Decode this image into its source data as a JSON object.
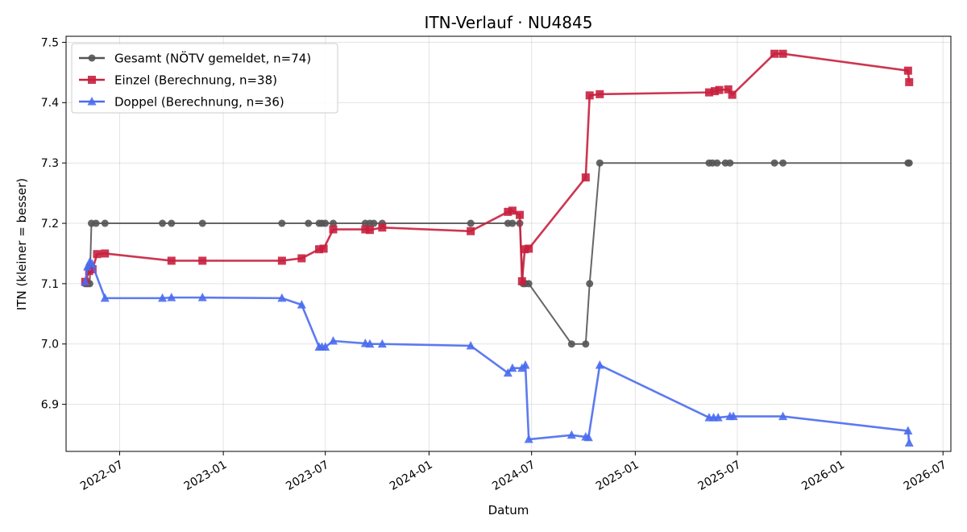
{
  "chart_data": {
    "type": "line",
    "title": "ITN-Verlauf · NU4845",
    "xlabel": "Datum",
    "ylabel": "ITN  (kleiner = besser)",
    "xlim": [
      "2022-03-28",
      "2026-07-15"
    ],
    "ylim": [
      6.822,
      7.51
    ],
    "grid": true,
    "legend": "top-left",
    "x_ticks": [
      "2022-07",
      "2023-01",
      "2023-07",
      "2024-01",
      "2024-07",
      "2025-01",
      "2025-07",
      "2026-01",
      "2026-07"
    ],
    "y_ticks": [
      "6.9",
      "7.0",
      "7.1",
      "7.2",
      "7.3",
      "7.4",
      "7.5"
    ],
    "series": [
      {
        "name": "Gesamt (NÖTV gemeldet, n=74)",
        "color": "#555555",
        "marker": "circle",
        "points": [
          [
            "2022-05-01",
            7.1
          ],
          [
            "2022-05-05",
            7.1
          ],
          [
            "2022-05-09",
            7.1
          ],
          [
            "2022-05-12",
            7.2
          ],
          [
            "2022-05-20",
            7.2
          ],
          [
            "2022-06-05",
            7.2
          ],
          [
            "2022-09-15",
            7.2
          ],
          [
            "2022-10-01",
            7.2
          ],
          [
            "2022-11-25",
            7.2
          ],
          [
            "2023-04-15",
            7.2
          ],
          [
            "2023-06-01",
            7.2
          ],
          [
            "2023-06-20",
            7.2
          ],
          [
            "2023-06-25",
            7.2
          ],
          [
            "2023-07-01",
            7.2
          ],
          [
            "2023-07-15",
            7.2
          ],
          [
            "2023-09-10",
            7.2
          ],
          [
            "2023-09-18",
            7.2
          ],
          [
            "2023-09-25",
            7.2
          ],
          [
            "2023-10-10",
            7.2
          ],
          [
            "2024-03-15",
            7.2
          ],
          [
            "2024-05-20",
            7.2
          ],
          [
            "2024-05-28",
            7.2
          ],
          [
            "2024-06-10",
            7.2
          ],
          [
            "2024-06-16",
            7.1
          ],
          [
            "2024-06-20",
            7.1
          ],
          [
            "2024-06-26",
            7.1
          ],
          [
            "2024-09-10",
            7.0
          ],
          [
            "2024-10-05",
            7.0
          ],
          [
            "2024-10-12",
            7.1
          ],
          [
            "2024-10-30",
            7.3
          ],
          [
            "2025-05-12",
            7.3
          ],
          [
            "2025-05-18",
            7.3
          ],
          [
            "2025-05-26",
            7.3
          ],
          [
            "2025-06-10",
            7.3
          ],
          [
            "2025-06-18",
            7.3
          ],
          [
            "2025-09-05",
            7.3
          ],
          [
            "2025-09-20",
            7.3
          ],
          [
            "2026-04-30",
            7.3
          ],
          [
            "2026-05-02",
            7.3
          ]
        ]
      },
      {
        "name": "Einzel (Berechnung, n=38)",
        "color": "#c8203e",
        "marker": "square",
        "points": [
          [
            "2022-05-01",
            7.103
          ],
          [
            "2022-05-08",
            7.121
          ],
          [
            "2022-05-14",
            7.124
          ],
          [
            "2022-05-22",
            7.149
          ],
          [
            "2022-06-05",
            7.15
          ],
          [
            "2022-10-01",
            7.138
          ],
          [
            "2022-11-25",
            7.138
          ],
          [
            "2023-04-15",
            7.138
          ],
          [
            "2023-05-20",
            7.142
          ],
          [
            "2023-06-20",
            7.157
          ],
          [
            "2023-06-28",
            7.158
          ],
          [
            "2023-07-15",
            7.19
          ],
          [
            "2023-09-10",
            7.19
          ],
          [
            "2023-09-18",
            7.189
          ],
          [
            "2023-10-10",
            7.193
          ],
          [
            "2024-03-15",
            7.187
          ],
          [
            "2024-05-20",
            7.219
          ],
          [
            "2024-05-28",
            7.221
          ],
          [
            "2024-06-10",
            7.214
          ],
          [
            "2024-06-14",
            7.104
          ],
          [
            "2024-06-19",
            7.157
          ],
          [
            "2024-06-26",
            7.158
          ],
          [
            "2024-10-05",
            7.276
          ],
          [
            "2024-10-12",
            7.412
          ],
          [
            "2024-10-30",
            7.414
          ],
          [
            "2025-05-12",
            7.417
          ],
          [
            "2025-05-22",
            7.419
          ],
          [
            "2025-05-30",
            7.421
          ],
          [
            "2025-06-15",
            7.422
          ],
          [
            "2025-06-22",
            7.413
          ],
          [
            "2025-09-05",
            7.481
          ],
          [
            "2025-09-20",
            7.481
          ],
          [
            "2026-04-30",
            7.453
          ],
          [
            "2026-05-02",
            7.434
          ]
        ]
      },
      {
        "name": "Doppel (Berechnung, n=36)",
        "color": "#4a6cf0",
        "marker": "triangle",
        "points": [
          [
            "2022-05-01",
            7.103
          ],
          [
            "2022-05-05",
            7.128
          ],
          [
            "2022-05-09",
            7.136
          ],
          [
            "2022-05-13",
            7.133
          ],
          [
            "2022-06-05",
            7.076
          ],
          [
            "2022-09-15",
            7.076
          ],
          [
            "2022-10-01",
            7.077
          ],
          [
            "2022-11-25",
            7.077
          ],
          [
            "2023-04-15",
            7.076
          ],
          [
            "2023-05-20",
            7.065
          ],
          [
            "2023-06-20",
            6.995
          ],
          [
            "2023-06-25",
            6.995
          ],
          [
            "2023-07-01",
            6.995
          ],
          [
            "2023-07-15",
            7.005
          ],
          [
            "2023-09-10",
            7.001
          ],
          [
            "2023-09-18",
            7.0
          ],
          [
            "2023-10-10",
            7.0
          ],
          [
            "2024-03-15",
            6.997
          ],
          [
            "2024-05-20",
            6.952
          ],
          [
            "2024-05-28",
            6.96
          ],
          [
            "2024-06-14",
            6.96
          ],
          [
            "2024-06-20",
            6.965
          ],
          [
            "2024-06-26",
            6.842
          ],
          [
            "2024-09-10",
            6.849
          ],
          [
            "2024-10-05",
            6.846
          ],
          [
            "2024-10-10",
            6.845
          ],
          [
            "2024-10-30",
            6.965
          ],
          [
            "2025-05-12",
            6.878
          ],
          [
            "2025-05-20",
            6.878
          ],
          [
            "2025-05-28",
            6.878
          ],
          [
            "2025-06-18",
            6.88
          ],
          [
            "2025-06-24",
            6.88
          ],
          [
            "2025-09-20",
            6.88
          ],
          [
            "2026-04-30",
            6.856
          ],
          [
            "2026-05-02",
            6.836
          ]
        ]
      }
    ]
  }
}
